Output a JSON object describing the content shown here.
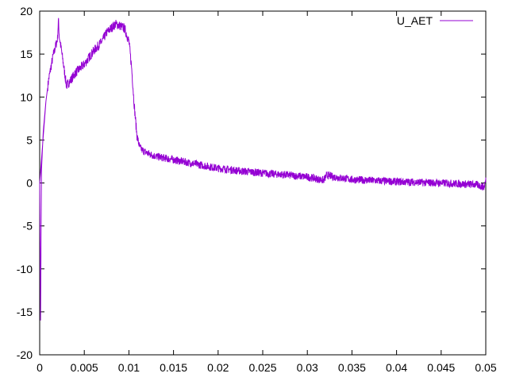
{
  "chart_data": {
    "type": "line",
    "title": "",
    "xlabel": "",
    "ylabel": "",
    "xlim": [
      0,
      0.05
    ],
    "ylim": [
      -20,
      20
    ],
    "grid": false,
    "legend_position": "top-right",
    "x_ticks": [
      0,
      0.005,
      0.01,
      0.015,
      0.02,
      0.025,
      0.03,
      0.035,
      0.04,
      0.045,
      0.05
    ],
    "x_tick_labels": [
      "0",
      "0.005",
      "0.01",
      "0.015",
      "0.02",
      "0.025",
      "0.03",
      "0.035",
      "0.04",
      "0.045",
      "0.05"
    ],
    "y_ticks": [
      -20,
      -15,
      -10,
      -5,
      0,
      5,
      10,
      15,
      20
    ],
    "y_tick_labels": [
      "-20",
      "-15",
      "-10",
      "-5",
      "0",
      "5",
      "10",
      "15",
      "20"
    ],
    "series": [
      {
        "name": "U_AET",
        "color": "#9400d3",
        "x": [
          0,
          0.0001,
          0.0002,
          0.0004,
          0.0007,
          0.001,
          0.0015,
          0.002,
          0.0021,
          0.0022,
          0.0025,
          0.003,
          0.0035,
          0.004,
          0.005,
          0.006,
          0.007,
          0.0075,
          0.008,
          0.0085,
          0.009,
          0.0095,
          0.01,
          0.0103,
          0.0106,
          0.0109,
          0.0112,
          0.0115,
          0.012,
          0.0125,
          0.013,
          0.014,
          0.015,
          0.016,
          0.017,
          0.018,
          0.019,
          0.02,
          0.021,
          0.022,
          0.023,
          0.024,
          0.025,
          0.026,
          0.027,
          0.028,
          0.029,
          0.03,
          0.031,
          0.0318,
          0.0322,
          0.033,
          0.034,
          0.035,
          0.036,
          0.037,
          0.038,
          0.039,
          0.04,
          0.041,
          0.042,
          0.043,
          0.044,
          0.045,
          0.046,
          0.047,
          0.048,
          0.049,
          0.0498,
          0.05
        ],
        "values": [
          0,
          -16,
          1.5,
          6,
          9.5,
          12,
          14.8,
          16.8,
          19,
          17,
          15,
          11.3,
          12,
          12.8,
          13.8,
          15.3,
          16.5,
          17.5,
          18,
          18.5,
          18.3,
          18,
          16.5,
          13.5,
          9,
          5.5,
          4.2,
          3.8,
          3.5,
          3.3,
          3.1,
          2.9,
          2.7,
          2.5,
          2.3,
          2.1,
          1.9,
          1.7,
          1.6,
          1.45,
          1.35,
          1.25,
          1.15,
          1.05,
          1.0,
          0.9,
          0.8,
          0.7,
          0.5,
          0.3,
          0.9,
          0.7,
          0.55,
          0.4,
          0.35,
          0.3,
          0.25,
          0.2,
          0.15,
          0.12,
          0.1,
          0.05,
          0.02,
          0.0,
          -0.05,
          -0.1,
          -0.15,
          -0.2,
          -0.5,
          0.3
        ]
      }
    ]
  }
}
